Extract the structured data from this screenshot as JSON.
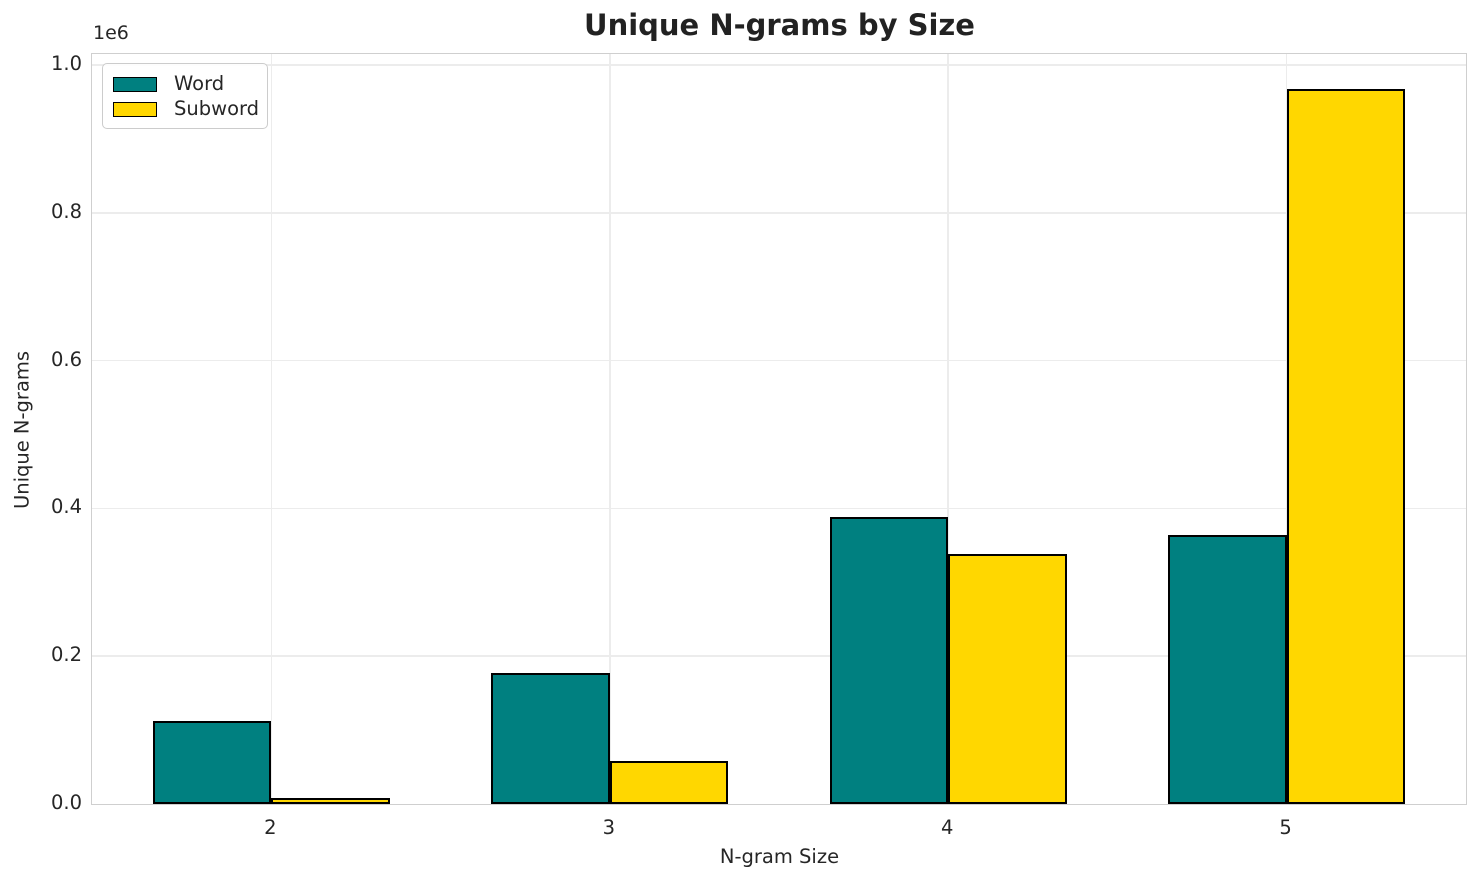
{
  "chart_data": {
    "type": "bar",
    "title": "Unique N-grams by Size",
    "xlabel": "N-gram Size",
    "ylabel": "Unique N-grams",
    "y_offset_text": "1e6",
    "categories": [
      "2",
      "3",
      "4",
      "5"
    ],
    "series": [
      {
        "name": "Word",
        "color": "#008080",
        "values": [
          112000,
          177000,
          388000,
          364000
        ]
      },
      {
        "name": "Subword",
        "color": "#FFD700",
        "values": [
          8000,
          58000,
          338000,
          967000
        ]
      }
    ],
    "bar_edge_color": "#000000",
    "ylim": [
      0,
      1015000
    ],
    "yticks": [
      0,
      200000,
      400000,
      600000,
      800000,
      1000000
    ],
    "ytick_labels": [
      "0.0",
      "0.2",
      "0.4",
      "0.6",
      "0.8",
      "1.0"
    ],
    "grid": "both",
    "grid_color": "#ececec",
    "spine_color": "#cfcfcf",
    "legend_position": "upper left"
  }
}
